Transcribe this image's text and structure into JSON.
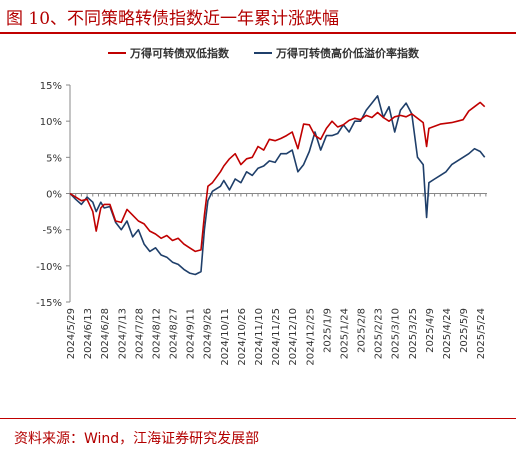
{
  "figure_title": "图 10、不同策略转债指数近一年累计涨跌幅",
  "source_note": "资料来源：Wind，江海证券研究发展部",
  "colors": {
    "series1": "#c00000",
    "series2": "#1f3f6a",
    "accent": "#b30000"
  },
  "chart_data": {
    "type": "line",
    "title": "",
    "xlabel": "",
    "ylabel": "",
    "y_unit": "%",
    "ylim": [
      -15,
      15
    ],
    "y_ticks": [
      -15,
      -10,
      -5,
      0,
      5,
      10,
      15
    ],
    "y_tick_labels": [
      "-15%",
      "-10%",
      "-5%",
      "0%",
      "5%",
      "10%",
      "15%"
    ],
    "x_tick_labels": [
      "2024/5/29",
      "2024/6/13",
      "2024/6/28",
      "2024/7/13",
      "2024/7/28",
      "2024/8/12",
      "2024/8/27",
      "2024/9/11",
      "2024/9/26",
      "2024/10/11",
      "2024/10/26",
      "2024/11/10",
      "2024/11/25",
      "2024/12/10",
      "2024/12/25",
      "2025/1/9",
      "2025/1/24",
      "2025/2/8",
      "2025/2/23",
      "2025/3/10",
      "2025/3/25",
      "2025/4/9",
      "2025/4/24",
      "2025/5/9",
      "2025/5/24"
    ],
    "legend_position": "top",
    "grid": false,
    "series": [
      {
        "name": "万得可转债双低指数",
        "x": [
          "2024/5/29",
          "2024/6/3",
          "2024/6/8",
          "2024/6/13",
          "2024/6/18",
          "2024/6/21",
          "2024/6/25",
          "2024/6/28",
          "2024/7/3",
          "2024/7/8",
          "2024/7/13",
          "2024/7/18",
          "2024/7/23",
          "2024/7/28",
          "2024/8/2",
          "2024/8/7",
          "2024/8/12",
          "2024/8/17",
          "2024/8/22",
          "2024/8/27",
          "2024/9/1",
          "2024/9/6",
          "2024/9/11",
          "2024/9/16",
          "2024/9/21",
          "2024/9/24",
          "2024/9/27",
          "2024/10/1",
          "2024/10/8",
          "2024/10/11",
          "2024/10/16",
          "2024/10/21",
          "2024/10/26",
          "2024/10/31",
          "2024/11/5",
          "2024/11/10",
          "2024/11/15",
          "2024/11/20",
          "2024/11/25",
          "2024/11/30",
          "2024/12/5",
          "2024/12/10",
          "2024/12/15",
          "2024/12/20",
          "2024/12/25",
          "2024/12/30",
          "2025/1/4",
          "2025/1/9",
          "2025/1/14",
          "2025/1/19",
          "2025/1/24",
          "2025/1/29",
          "2025/2/3",
          "2025/2/8",
          "2025/2/13",
          "2025/2/18",
          "2025/2/23",
          "2025/2/28",
          "2025/3/5",
          "2025/3/10",
          "2025/3/15",
          "2025/3/20",
          "2025/3/25",
          "2025/3/30",
          "2025/4/4",
          "2025/4/7",
          "2025/4/9",
          "2025/4/14",
          "2025/4/19",
          "2025/4/24",
          "2025/4/29",
          "2025/5/4",
          "2025/5/9",
          "2025/5/14",
          "2025/5/19",
          "2025/5/24",
          "2025/5/28"
        ],
        "y": [
          0,
          -0.5,
          -1.0,
          -0.8,
          -2.5,
          -5.2,
          -2.0,
          -1.5,
          -1.5,
          -3.8,
          -4.0,
          -2.2,
          -3.0,
          -3.8,
          -4.2,
          -5.2,
          -5.6,
          -6.2,
          -5.8,
          -6.5,
          -6.2,
          -7.0,
          -7.5,
          -8.0,
          -7.8,
          -3.0,
          1.0,
          1.5,
          3.0,
          3.8,
          4.8,
          5.5,
          4.0,
          4.8,
          5.0,
          6.5,
          6.0,
          7.5,
          7.3,
          7.6,
          8.0,
          8.5,
          6.2,
          9.6,
          9.5,
          8.0,
          7.5,
          9.0,
          10.0,
          9.2,
          9.5,
          10.1,
          10.4,
          10.2,
          10.8,
          10.5,
          11.2,
          10.5,
          10.0,
          10.6,
          10.8,
          10.6,
          11.0,
          10.4,
          9.8,
          6.5,
          9.0,
          9.3,
          9.6,
          9.7,
          9.8,
          10.0,
          10.2,
          11.4,
          12.0,
          12.6,
          12.0
        ]
      },
      {
        "name": "万得可转债高价低溢价率指数",
        "x": [
          "2024/5/29",
          "2024/6/3",
          "2024/6/8",
          "2024/6/13",
          "2024/6/18",
          "2024/6/21",
          "2024/6/25",
          "2024/6/28",
          "2024/7/3",
          "2024/7/8",
          "2024/7/13",
          "2024/7/18",
          "2024/7/23",
          "2024/7/28",
          "2024/8/2",
          "2024/8/7",
          "2024/8/12",
          "2024/8/17",
          "2024/8/22",
          "2024/8/27",
          "2024/9/1",
          "2024/9/6",
          "2024/9/11",
          "2024/9/16",
          "2024/9/21",
          "2024/9/24",
          "2024/9/27",
          "2024/10/1",
          "2024/10/8",
          "2024/10/11",
          "2024/10/16",
          "2024/10/21",
          "2024/10/26",
          "2024/10/31",
          "2024/11/5",
          "2024/11/10",
          "2024/11/15",
          "2024/11/20",
          "2024/11/25",
          "2024/11/30",
          "2024/12/5",
          "2024/12/10",
          "2024/12/15",
          "2024/12/20",
          "2024/12/25",
          "2024/12/30",
          "2025/1/4",
          "2025/1/9",
          "2025/1/14",
          "2025/1/19",
          "2025/1/24",
          "2025/1/29",
          "2025/2/3",
          "2025/2/8",
          "2025/2/13",
          "2025/2/18",
          "2025/2/23",
          "2025/2/28",
          "2025/3/5",
          "2025/3/10",
          "2025/3/15",
          "2025/3/20",
          "2025/3/25",
          "2025/3/30",
          "2025/4/4",
          "2025/4/7",
          "2025/4/9",
          "2025/4/14",
          "2025/4/19",
          "2025/4/24",
          "2025/4/29",
          "2025/5/4",
          "2025/5/9",
          "2025/5/14",
          "2025/5/19",
          "2025/5/24",
          "2025/5/28"
        ],
        "y": [
          0,
          -0.8,
          -1.5,
          -0.5,
          -1.2,
          -2.5,
          -1.2,
          -2.0,
          -1.8,
          -4.0,
          -5.0,
          -3.8,
          -6.0,
          -5.0,
          -7.0,
          -8.0,
          -7.5,
          -8.5,
          -8.8,
          -9.5,
          -9.8,
          -10.5,
          -11.0,
          -11.2,
          -10.8,
          -5.0,
          -1.0,
          0.3,
          1.0,
          1.8,
          0.5,
          2.0,
          1.5,
          3.0,
          2.5,
          3.5,
          3.8,
          4.5,
          4.3,
          5.5,
          5.5,
          6.0,
          3.0,
          4.0,
          5.8,
          8.5,
          6.0,
          8.0,
          8.0,
          8.3,
          9.5,
          8.5,
          10.0,
          10.0,
          11.5,
          12.5,
          13.5,
          10.5,
          12.0,
          8.5,
          11.5,
          12.5,
          11.0,
          5.0,
          4.0,
          -3.3,
          1.5,
          2.0,
          2.5,
          3.0,
          4.0,
          4.5,
          5.0,
          5.5,
          6.2,
          5.8,
          5.0
        ]
      }
    ]
  }
}
